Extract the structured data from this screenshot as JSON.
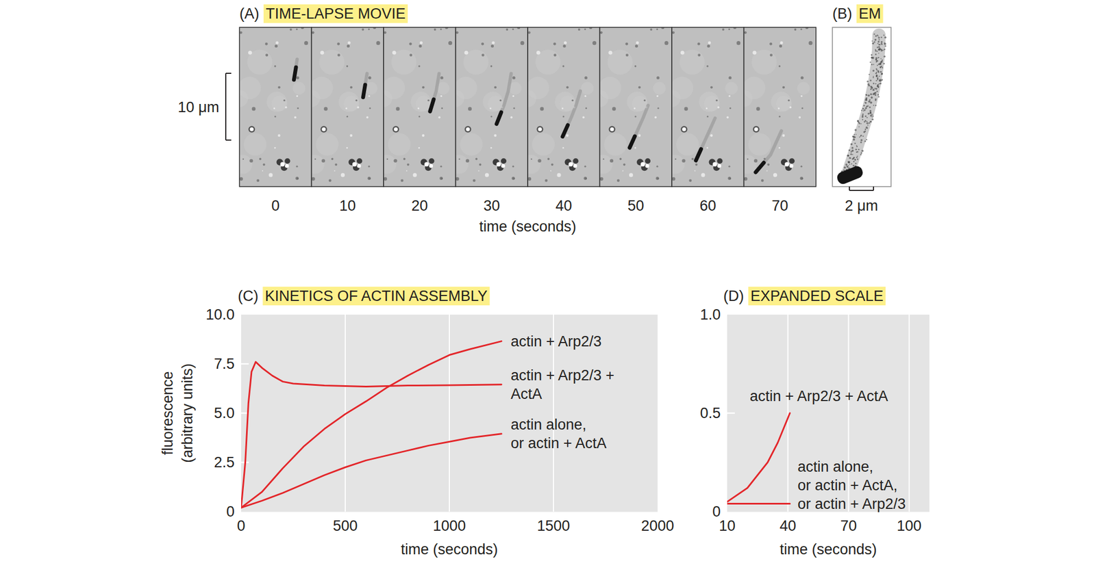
{
  "movie": {
    "panel": "(A)",
    "title": "TIME-LAPSE MOVIE",
    "scale_bar": "10 μm",
    "times": [
      0,
      10,
      20,
      30,
      40,
      50,
      60,
      70
    ],
    "x_label": "time (seconds)"
  },
  "em": {
    "panel": "(B)",
    "title": "EM",
    "scale_bar": "2 μm"
  },
  "chart_data": [
    {
      "type": "line",
      "panel": "(C)",
      "title": "KINETICS OF ACTIN ASSEMBLY",
      "x_label": "time (seconds)",
      "y_label": "fluorescence (arbitrary units)",
      "xlim": [
        0,
        2000
      ],
      "ylim": [
        0,
        10
      ],
      "xticks": [
        0,
        500,
        1000,
        1500,
        2000
      ],
      "yticks": [
        0,
        2.5,
        {
          "value": 5,
          "label": "5.0"
        },
        7.5,
        {
          "value": 10,
          "label": "10.0"
        }
      ],
      "grid": true,
      "color": "#e3262a",
      "series": [
        {
          "name": "actin + Arp2/3",
          "x": [
            0,
            100,
            200,
            300,
            400,
            500,
            600,
            700,
            800,
            900,
            1000,
            1100,
            1250
          ],
          "values": [
            0.2,
            1.0,
            2.2,
            3.3,
            4.2,
            4.95,
            5.6,
            6.3,
            6.9,
            7.45,
            7.95,
            8.25,
            8.65
          ]
        },
        {
          "name": "actin + Arp2/3 + ActA",
          "x": [
            0,
            20,
            35,
            50,
            70,
            100,
            150,
            200,
            250,
            400,
            600,
            800,
            1000,
            1250
          ],
          "values": [
            0.2,
            2.5,
            5.5,
            7.1,
            7.6,
            7.3,
            6.9,
            6.6,
            6.5,
            6.4,
            6.35,
            6.4,
            6.42,
            6.45
          ]
        },
        {
          "name": "actin alone, or actin + ActA",
          "x": [
            0,
            100,
            200,
            300,
            400,
            500,
            600,
            700,
            800,
            900,
            1000,
            1100,
            1250
          ],
          "values": [
            0.2,
            0.55,
            0.95,
            1.4,
            1.85,
            2.25,
            2.6,
            2.85,
            3.1,
            3.35,
            3.55,
            3.75,
            3.95
          ]
        }
      ]
    },
    {
      "type": "line",
      "panel": "(D)",
      "title": "EXPANDED SCALE",
      "x_label": "time (seconds)",
      "xlim": [
        10,
        110
      ],
      "ylim": [
        0,
        1
      ],
      "xticks": [
        10,
        40,
        70,
        100
      ],
      "yticks": [
        0,
        0.5,
        {
          "value": 1,
          "label": "1.0"
        }
      ],
      "grid": true,
      "color": "#e3262a",
      "series": [
        {
          "name": "actin + Arp2/3 + ActA",
          "x": [
            10,
            20,
            30,
            35,
            41
          ],
          "values": [
            0.05,
            0.12,
            0.25,
            0.35,
            0.5
          ]
        },
        {
          "name": "actin alone, or actin + ActA, or actin + Arp2/3",
          "x": [
            10,
            41
          ],
          "values": [
            0.04,
            0.04
          ]
        }
      ]
    }
  ]
}
